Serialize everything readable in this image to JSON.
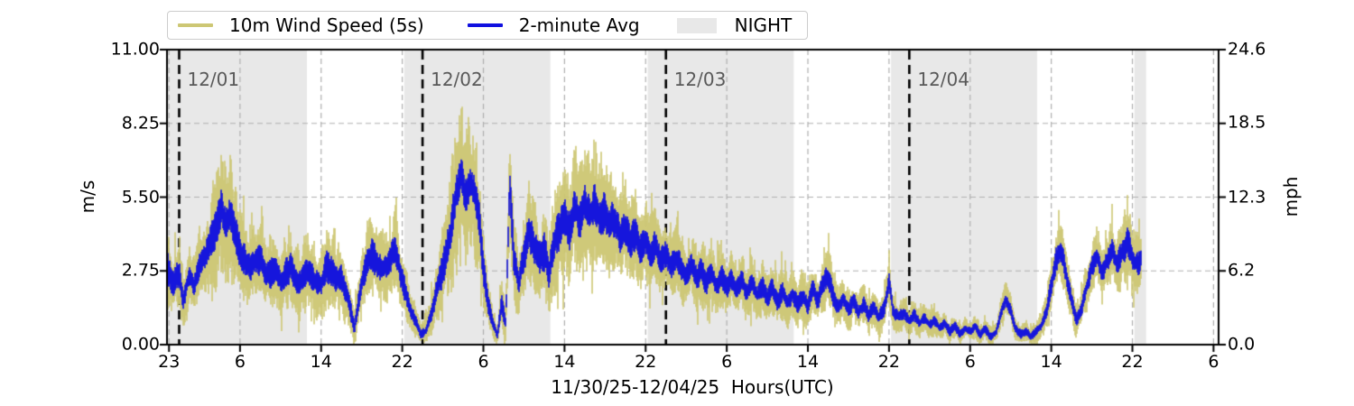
{
  "legend": {
    "items": [
      {
        "label": "10m Wind Speed (5s)",
        "swatch": "line",
        "color": "#cdc774"
      },
      {
        "label": "2-minute Avg",
        "swatch": "line",
        "color": "#1010e0"
      },
      {
        "label": "NIGHT",
        "swatch": "patch",
        "color": "#e8e8e8"
      }
    ]
  },
  "axes": {
    "left": {
      "label": "m/s",
      "ticks": [
        "11.00",
        "8.25",
        "5.50",
        "2.75",
        "0.00"
      ],
      "tick_values": [
        11.0,
        8.25,
        5.5,
        2.75,
        0.0
      ]
    },
    "right": {
      "label": "mph",
      "ticks": [
        "24.6",
        "18.5",
        "12.3",
        "6.2",
        "0.0"
      ],
      "tick_values": [
        24.6,
        18.5,
        12.3,
        6.2,
        0.0
      ]
    },
    "x": {
      "label": "11/30/25-12/04/25  Hours(UTC)",
      "ticks": [
        "23",
        "6",
        "14",
        "22",
        "6",
        "14",
        "22",
        "6",
        "14",
        "22",
        "6",
        "14",
        "22",
        "6"
      ],
      "tick_hours": [
        23,
        30,
        38,
        46,
        54,
        62,
        70,
        78,
        86,
        94,
        102,
        110,
        118,
        126
      ]
    }
  },
  "annotations": {
    "day_labels": [
      {
        "text": "12/01",
        "hour": 24
      },
      {
        "text": "12/02",
        "hour": 48
      },
      {
        "text": "12/03",
        "hour": 72
      },
      {
        "text": "12/04",
        "hour": 96
      }
    ]
  },
  "colors": {
    "wind_5s": "#cdc774",
    "avg_2min": "#1010e0",
    "night_band": "#e8e8e8",
    "gridline": "#b0b0b0",
    "midnight_line": "#000000",
    "day_label_text": "#595959",
    "spine": "#000000"
  },
  "chart_data": {
    "type": "line",
    "title": "",
    "xlabel": "11/30/25-12/04/25  Hours(UTC)",
    "ylabel_left": "m/s",
    "ylabel_right": "mph",
    "ylim_ms": [
      0,
      11.0
    ],
    "ylim_mph": [
      0,
      24.6
    ],
    "xlim_hours": [
      22.8,
      126.5
    ],
    "grid": true,
    "legend_position": "top",
    "night_bands_hours": [
      [
        22.8,
        36.6
      ],
      [
        46.2,
        60.6
      ],
      [
        70.2,
        84.6
      ],
      [
        94.2,
        108.6
      ],
      [
        118.2,
        119.35
      ]
    ],
    "midnight_lines_hours": [
      24,
      48,
      72,
      96
    ],
    "series": [
      {
        "name": "10m Wind Speed (5s)",
        "color": "#cdc774",
        "kind": "raw-5s-envelope"
      },
      {
        "name": "2-minute Avg",
        "color": "#1010e0",
        "kind": "2-min-average"
      }
    ],
    "points_format": [
      "hour_utc_after_11/30_00Z",
      "avg_wind_ms",
      "gust_spread_ms"
    ],
    "points": [
      [
        22.8,
        2.8,
        2.0
      ],
      [
        23.4,
        2.3,
        1.4
      ],
      [
        24,
        2.7,
        1.5
      ],
      [
        24.4,
        1.6,
        1.2
      ],
      [
        25,
        2.6,
        1.3
      ],
      [
        25.5,
        2.2,
        1.2
      ],
      [
        26,
        3.0,
        1.4
      ],
      [
        26.5,
        3.3,
        1.5
      ],
      [
        27,
        3.7,
        1.7
      ],
      [
        27.6,
        4.4,
        2.4
      ],
      [
        28.2,
        5.2,
        3.3
      ],
      [
        28.6,
        4.4,
        2.6
      ],
      [
        29,
        4.8,
        2.7
      ],
      [
        29.5,
        4.1,
        2.2
      ],
      [
        30,
        3.6,
        1.9
      ],
      [
        30.5,
        3.1,
        1.6
      ],
      [
        31,
        2.8,
        1.5
      ],
      [
        31.5,
        3.2,
        1.6
      ],
      [
        32,
        3.1,
        1.5
      ],
      [
        32.5,
        2.7,
        1.4
      ],
      [
        33,
        2.6,
        1.6
      ],
      [
        33.5,
        2.9,
        1.5
      ],
      [
        34,
        2.4,
        1.4
      ],
      [
        34.5,
        2.7,
        1.5
      ],
      [
        35,
        2.9,
        1.6
      ],
      [
        35.5,
        2.5,
        1.4
      ],
      [
        36,
        2.3,
        1.5
      ],
      [
        36.5,
        2.7,
        1.6
      ],
      [
        37,
        2.6,
        1.5
      ],
      [
        37.5,
        2.3,
        1.4
      ],
      [
        38,
        2.2,
        1.5
      ],
      [
        38.5,
        2.9,
        1.7
      ],
      [
        39,
        2.8,
        1.6
      ],
      [
        39.5,
        2.5,
        1.5
      ],
      [
        40,
        2.4,
        1.5
      ],
      [
        40.6,
        1.8,
        1.2
      ],
      [
        41.3,
        0.6,
        0.8
      ],
      [
        41.8,
        1.9,
        1.2
      ],
      [
        42.3,
        2.8,
        1.5
      ],
      [
        43,
        3.4,
        1.6
      ],
      [
        43.5,
        3.0,
        1.5
      ],
      [
        44,
        2.8,
        1.5
      ],
      [
        44.5,
        2.9,
        1.5
      ],
      [
        45.3,
        3.7,
        1.6
      ],
      [
        45.8,
        2.7,
        1.4
      ],
      [
        46.3,
        2.0,
        1.2
      ],
      [
        46.8,
        1.3,
        0.9
      ],
      [
        47.3,
        0.9,
        0.7
      ],
      [
        47.8,
        0.4,
        0.4
      ],
      [
        48.3,
        0.5,
        0.5
      ],
      [
        48.8,
        1.1,
        0.9
      ],
      [
        49.4,
        2.0,
        1.3
      ],
      [
        50,
        2.8,
        1.8
      ],
      [
        50.7,
        4.0,
        2.6
      ],
      [
        51.3,
        5.6,
        3.2
      ],
      [
        51.8,
        6.3,
        3.0
      ],
      [
        52.2,
        5.4,
        2.9
      ],
      [
        52.7,
        6.0,
        2.9
      ],
      [
        53.2,
        5.6,
        2.6
      ],
      [
        53.6,
        4.6,
        2.2
      ],
      [
        54,
        2.8,
        1.6
      ],
      [
        54.5,
        1.5,
        1.0
      ],
      [
        55,
        0.7,
        0.6
      ],
      [
        55.4,
        0.4,
        0.5
      ],
      [
        55.8,
        1.6,
        1.0
      ],
      [
        56.2,
        0.8,
        0.8
      ],
      [
        56.6,
        6.1,
        2.4
      ],
      [
        57,
        3.2,
        1.8
      ],
      [
        57.5,
        2.3,
        1.4
      ],
      [
        58,
        3.3,
        1.7
      ],
      [
        58.5,
        4.2,
        2.1
      ],
      [
        59,
        3.7,
        2.0
      ],
      [
        59.5,
        3.1,
        1.8
      ],
      [
        60,
        3.5,
        2.0
      ],
      [
        60.5,
        2.7,
        1.7
      ],
      [
        61,
        3.8,
        2.2
      ],
      [
        61.5,
        4.3,
        2.4
      ],
      [
        62,
        4.7,
        2.5
      ],
      [
        62.5,
        4.2,
        2.4
      ],
      [
        63,
        5.1,
        2.6
      ],
      [
        63.5,
        4.6,
        2.5
      ],
      [
        64,
        5.2,
        2.5
      ],
      [
        64.5,
        4.8,
        2.4
      ],
      [
        65,
        5.3,
        2.4
      ],
      [
        65.5,
        4.7,
        2.3
      ],
      [
        66,
        5.0,
        2.2
      ],
      [
        66.5,
        4.4,
        2.1
      ],
      [
        67,
        4.7,
        2.0
      ],
      [
        67.5,
        4.1,
        1.9
      ],
      [
        68,
        4.4,
        1.9
      ],
      [
        68.5,
        3.8,
        1.8
      ],
      [
        69,
        4.2,
        1.8
      ],
      [
        69.5,
        3.6,
        1.7
      ],
      [
        70,
        3.9,
        1.7
      ],
      [
        70.5,
        3.4,
        1.6
      ],
      [
        71,
        3.7,
        1.6
      ],
      [
        71.5,
        3.1,
        1.5
      ],
      [
        72,
        3.4,
        1.5
      ],
      [
        72.5,
        2.9,
        1.4
      ],
      [
        73,
        3.2,
        1.5
      ],
      [
        73.5,
        2.9,
        1.4
      ],
      [
        74,
        2.6,
        1.4
      ],
      [
        74.5,
        3.0,
        1.4
      ],
      [
        75,
        2.5,
        1.3
      ],
      [
        75.5,
        2.8,
        1.4
      ],
      [
        76,
        2.3,
        1.3
      ],
      [
        76.5,
        2.7,
        1.3
      ],
      [
        77,
        2.2,
        1.2
      ],
      [
        77.5,
        2.6,
        1.3
      ],
      [
        78,
        2.1,
        1.2
      ],
      [
        78.5,
        2.5,
        1.2
      ],
      [
        79,
        2.0,
        1.2
      ],
      [
        79.5,
        2.4,
        1.2
      ],
      [
        80,
        1.9,
        1.1
      ],
      [
        80.5,
        2.3,
        1.2
      ],
      [
        81,
        1.8,
        1.1
      ],
      [
        81.5,
        2.2,
        1.1
      ],
      [
        82,
        1.7,
        1.1
      ],
      [
        82.5,
        2.1,
        1.1
      ],
      [
        83,
        1.6,
        1.0
      ],
      [
        83.5,
        2.0,
        1.1
      ],
      [
        84,
        1.5,
        1.0
      ],
      [
        84.5,
        1.9,
        1.0
      ],
      [
        85,
        1.5,
        1.0
      ],
      [
        85.5,
        1.8,
        1.0
      ],
      [
        86,
        1.4,
        1.0
      ],
      [
        86.5,
        2.1,
        1.1
      ],
      [
        87,
        1.6,
        1.0
      ],
      [
        87.5,
        2.3,
        1.2
      ],
      [
        88,
        2.6,
        1.2
      ],
      [
        88.5,
        1.8,
        1.0
      ],
      [
        89,
        1.4,
        0.9
      ],
      [
        89.5,
        1.7,
        0.9
      ],
      [
        90,
        1.3,
        0.9
      ],
      [
        90.5,
        1.6,
        0.9
      ],
      [
        91,
        1.2,
        0.8
      ],
      [
        91.5,
        1.5,
        0.9
      ],
      [
        92,
        1.1,
        0.8
      ],
      [
        92.5,
        1.4,
        0.8
      ],
      [
        93,
        1.0,
        0.8
      ],
      [
        93.5,
        1.3,
        0.8
      ],
      [
        94,
        2.4,
        0.9
      ],
      [
        94.4,
        1.2,
        0.7
      ],
      [
        95,
        1.0,
        0.7
      ],
      [
        95.5,
        1.2,
        0.7
      ],
      [
        96,
        0.9,
        0.6
      ],
      [
        96.5,
        1.1,
        0.7
      ],
      [
        97,
        0.8,
        0.6
      ],
      [
        97.5,
        1.0,
        0.6
      ],
      [
        98,
        0.7,
        0.5
      ],
      [
        98.5,
        0.9,
        0.6
      ],
      [
        99,
        0.6,
        0.5
      ],
      [
        99.5,
        0.8,
        0.5
      ],
      [
        100,
        0.5,
        0.5
      ],
      [
        100.5,
        0.7,
        0.5
      ],
      [
        101,
        0.4,
        0.4
      ],
      [
        101.5,
        0.6,
        0.5
      ],
      [
        102,
        0.5,
        0.4
      ],
      [
        102.5,
        0.7,
        0.5
      ],
      [
        103,
        0.4,
        0.4
      ],
      [
        103.5,
        0.6,
        0.4
      ],
      [
        104,
        0.3,
        0.4
      ],
      [
        104.6,
        0.5,
        0.4
      ],
      [
        105.1,
        1.3,
        0.7
      ],
      [
        105.5,
        1.7,
        0.8
      ],
      [
        106,
        1.3,
        0.7
      ],
      [
        106.5,
        0.6,
        0.5
      ],
      [
        107,
        0.4,
        0.4
      ],
      [
        107.5,
        0.5,
        0.4
      ],
      [
        108,
        0.3,
        0.4
      ],
      [
        108.5,
        0.5,
        0.5
      ],
      [
        109,
        0.7,
        0.6
      ],
      [
        109.5,
        1.2,
        0.8
      ],
      [
        110,
        2.2,
        1.1
      ],
      [
        110.5,
        3.2,
        1.3
      ],
      [
        111,
        3.5,
        1.3
      ],
      [
        111.5,
        2.6,
        1.1
      ],
      [
        112,
        1.6,
        0.9
      ],
      [
        112.5,
        0.9,
        0.7
      ],
      [
        113,
        1.4,
        0.8
      ],
      [
        113.5,
        2.2,
        1.0
      ],
      [
        114,
        2.9,
        1.1
      ],
      [
        114.5,
        3.3,
        1.2
      ],
      [
        115,
        2.7,
        1.1
      ],
      [
        115.5,
        3.1,
        1.2
      ],
      [
        116,
        3.6,
        1.3
      ],
      [
        116.5,
        3.0,
        1.2
      ],
      [
        117,
        3.4,
        1.3
      ],
      [
        117.5,
        3.8,
        1.6
      ],
      [
        118.2,
        3.1,
        1.4
      ],
      [
        118.6,
        3.0,
        1.2
      ],
      [
        118.9,
        3.3,
        1.1
      ]
    ]
  }
}
